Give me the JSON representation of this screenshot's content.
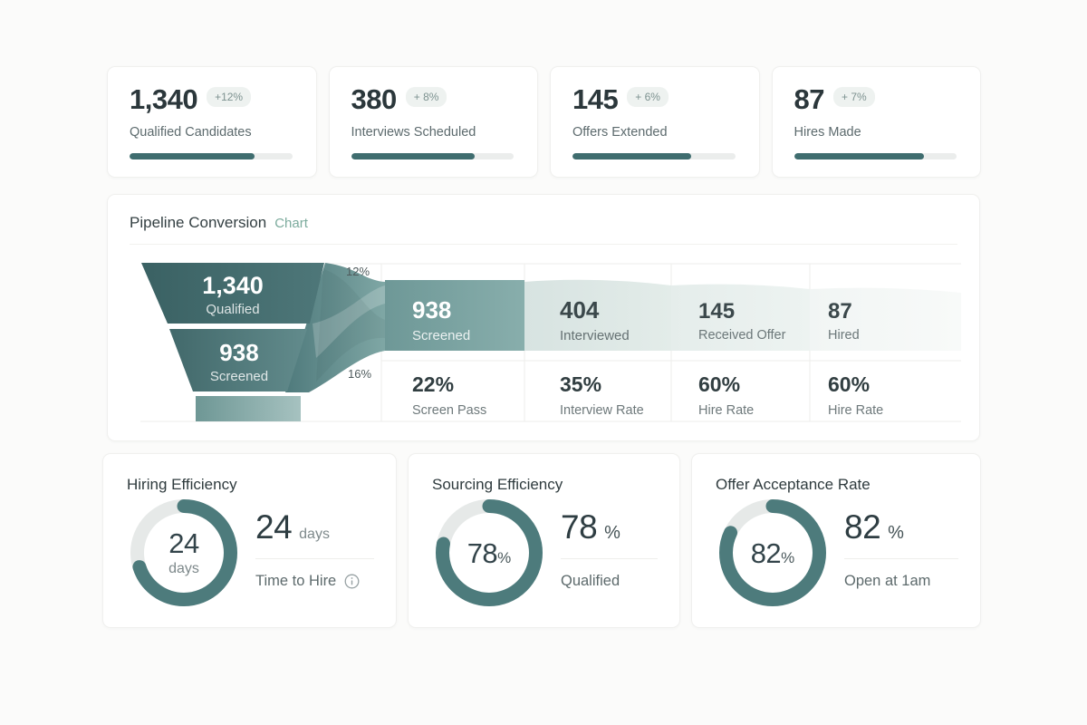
{
  "colors": {
    "page_background": "#fbfbfa",
    "accent_teal": "#3f6d6f",
    "funnel_dark": "#3c6365",
    "funnel_mid": "#7fa5a3",
    "ring_teal": "#4d7b7c",
    "subtitle_teal": "#7cab9d",
    "delta_badge_bg": "#eef2f0",
    "delta_badge_text": "#7d9290"
  },
  "kpi_cards": [
    {
      "value": "1,340",
      "delta": "+12%",
      "label": "Qualified Candidates",
      "progress": 77
    },
    {
      "value": "380",
      "delta": "+ 8%",
      "label": "Interviews Scheduled",
      "progress": 76
    },
    {
      "value": "145",
      "delta": "+ 6%",
      "label": "Offers Extended",
      "progress": 73
    },
    {
      "value": "87",
      "delta": "+ 7%",
      "label": "Hires Made",
      "progress": 80
    }
  ],
  "pipeline": {
    "title": "Pipeline Conversion",
    "subtitle": "Chart",
    "funnel": {
      "stage1": {
        "value": "1,340",
        "label": "Qualified"
      },
      "stage2": {
        "value": "938",
        "label": "Screened"
      },
      "drop1": "12%",
      "drop2": "16%"
    },
    "stages": [
      {
        "value": "938",
        "label": "Screened",
        "stat": "22%",
        "stat_label": "Screen Pass"
      },
      {
        "value": "404",
        "label": "Interviewed",
        "stat": "35%",
        "stat_label": "Interview Rate"
      },
      {
        "value": "145",
        "label": "Received Offer",
        "stat": "60%",
        "stat_label": "Hire Rate"
      },
      {
        "value": "87",
        "label": "Hired",
        "stat": "60%",
        "stat_label": "Hire Rate"
      }
    ]
  },
  "metric_cards": [
    {
      "title": "Hiring Efficiency",
      "ring_value": "24",
      "ring_unit": "days",
      "ring_percent": 70,
      "big_value": "24",
      "big_unit": "days",
      "label": "Time to Hire"
    },
    {
      "title": "Sourcing Efficiency",
      "ring_value": "78",
      "ring_unit": "%",
      "ring_percent": 78,
      "big_value": "78",
      "big_unit": "%",
      "label": "Qualified"
    },
    {
      "title": "Offer Acceptance Rate",
      "ring_value": "82",
      "ring_unit": "%",
      "ring_percent": 82,
      "big_value": "82",
      "big_unit": "%",
      "label": "Open at 1am"
    }
  ],
  "chart_data": [
    {
      "type": "funnel",
      "title": "Pipeline Conversion",
      "categories": [
        "Qualified",
        "Screened",
        "Interviewed",
        "Received Offer",
        "Hired"
      ],
      "values": [
        1340,
        938,
        404,
        145,
        87
      ],
      "drop_off_labels": [
        "12%",
        "16%"
      ],
      "conversion_stats": [
        {
          "label": "Screen Pass",
          "value": 22
        },
        {
          "label": "Interview Rate",
          "value": 35
        },
        {
          "label": "Hire Rate",
          "value": 60
        },
        {
          "label": "Hire Rate",
          "value": 60
        }
      ]
    },
    {
      "type": "kpi_progress",
      "categories": [
        "Qualified Candidates",
        "Interviews Scheduled",
        "Offers Extended",
        "Hires Made"
      ],
      "values": [
        1340,
        380,
        145,
        87
      ],
      "deltas_pct": [
        12,
        8,
        6,
        7
      ]
    },
    {
      "type": "donut",
      "title": "Hiring Efficiency",
      "value": 24,
      "unit": "days",
      "label": "Time to Hire"
    },
    {
      "type": "donut",
      "title": "Sourcing Efficiency",
      "value": 78,
      "unit": "%",
      "label": "Qualified"
    },
    {
      "type": "donut",
      "title": "Offer Acceptance Rate",
      "value": 82,
      "unit": "%",
      "label": "Open at 1am"
    }
  ]
}
